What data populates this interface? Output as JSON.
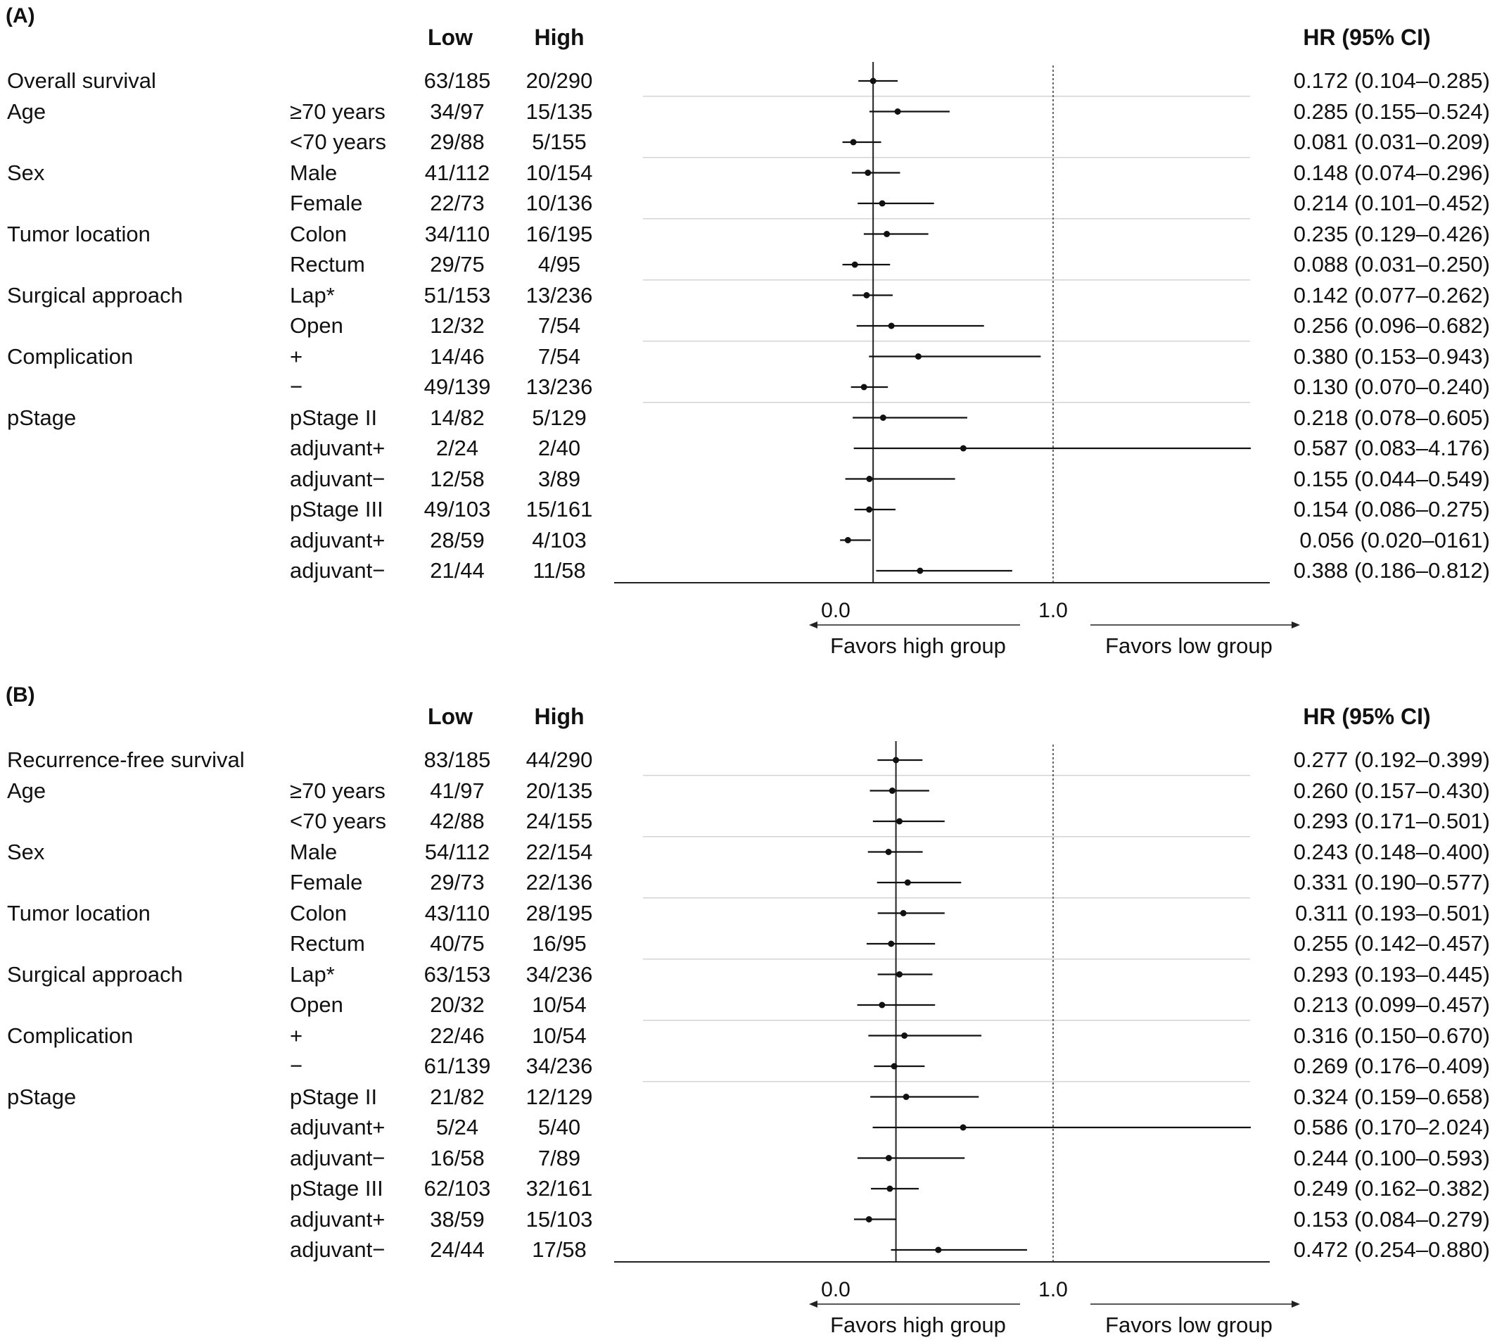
{
  "panels": [
    {
      "label": "(A)",
      "col_low": "Low",
      "col_high": "High",
      "col_hr": "HR (95% CI)",
      "axis_tick_labels": [
        "0.0",
        "1.0"
      ],
      "favors_left": "Favors high group",
      "favors_right": "Favors low group",
      "rows": [
        {
          "group": "Overall survival",
          "sub": "",
          "low": "63/185",
          "high": "20/290",
          "hr_text": "0.172 (0.104–0.285)"
        },
        {
          "group": "Age",
          "sub": "≥70 years",
          "low": "34/97",
          "high": "15/135",
          "hr_text": "0.285 (0.155–0.524)"
        },
        {
          "group": "",
          "sub": "<70 years",
          "low": "29/88",
          "high": "5/155",
          "hr_text": "0.081 (0.031–0.209)"
        },
        {
          "group": "Sex",
          "sub": "Male",
          "low": "41/112",
          "high": "10/154",
          "hr_text": "0.148 (0.074–0.296)"
        },
        {
          "group": "",
          "sub": "Female",
          "low": "22/73",
          "high": "10/136",
          "hr_text": "0.214 (0.101–0.452)"
        },
        {
          "group": "Tumor location",
          "sub": "Colon",
          "low": "34/110",
          "high": "16/195",
          "hr_text": "0.235 (0.129–0.426)"
        },
        {
          "group": "",
          "sub": "Rectum",
          "low": "29/75",
          "high": "4/95",
          "hr_text": "0.088 (0.031–0.250)"
        },
        {
          "group": "Surgical approach",
          "sub": "Lap*",
          "low": "51/153",
          "high": "13/236",
          "hr_text": "0.142 (0.077–0.262)"
        },
        {
          "group": "",
          "sub": "Open",
          "low": "12/32",
          "high": "7/54",
          "hr_text": "0.256 (0.096–0.682)"
        },
        {
          "group": "Complication",
          "sub": "+",
          "low": "14/46",
          "high": "7/54",
          "hr_text": "0.380 (0.153–0.943)"
        },
        {
          "group": "",
          "sub": "−",
          "low": "49/139",
          "high": "13/236",
          "hr_text": "0.130 (0.070–0.240)"
        },
        {
          "group": "pStage",
          "sub": "pStage II",
          "low": "14/82",
          "high": "5/129",
          "hr_text": "0.218 (0.078–0.605)"
        },
        {
          "group": "",
          "sub": "adjuvant+",
          "low": "2/24",
          "high": "2/40",
          "hr_text": "0.587 (0.083–4.176)"
        },
        {
          "group": "",
          "sub": "adjuvant−",
          "low": "12/58",
          "high": "3/89",
          "hr_text": "0.155 (0.044–0.549)"
        },
        {
          "group": "",
          "sub": "pStage III",
          "low": "49/103",
          "high": "15/161",
          "hr_text": "0.154 (0.086–0.275)"
        },
        {
          "group": "",
          "sub": "adjuvant+",
          "low": "28/59",
          "high": "4/103",
          "hr_text": "0.056 (0.020–0161)"
        },
        {
          "group": "",
          "sub": "adjuvant−",
          "low": "21/44",
          "high": "11/58",
          "hr_text": "0.388 (0.186–0.812)"
        }
      ]
    },
    {
      "label": "(B)",
      "col_low": "Low",
      "col_high": "High",
      "col_hr": "HR (95% CI)",
      "axis_tick_labels": [
        "0.0",
        "1.0"
      ],
      "favors_left": "Favors high group",
      "favors_right": "Favors low group",
      "rows": [
        {
          "group": "Recurrence-free survival",
          "sub": "",
          "low": "83/185",
          "high": "44/290",
          "hr_text": "0.277 (0.192–0.399)"
        },
        {
          "group": "Age",
          "sub": "≥70 years",
          "low": "41/97",
          "high": "20/135",
          "hr_text": "0.260 (0.157–0.430)"
        },
        {
          "group": "",
          "sub": "<70 years",
          "low": "42/88",
          "high": "24/155",
          "hr_text": "0.293 (0.171–0.501)"
        },
        {
          "group": "Sex",
          "sub": "Male",
          "low": "54/112",
          "high": "22/154",
          "hr_text": "0.243 (0.148–0.400)"
        },
        {
          "group": "",
          "sub": "Female",
          "low": "29/73",
          "high": "22/136",
          "hr_text": "0.331 (0.190–0.577)"
        },
        {
          "group": "Tumor location",
          "sub": "Colon",
          "low": "43/110",
          "high": "28/195",
          "hr_text": "0.311 (0.193–0.501)"
        },
        {
          "group": "",
          "sub": "Rectum",
          "low": "40/75",
          "high": "16/95",
          "hr_text": "0.255 (0.142–0.457)"
        },
        {
          "group": "Surgical approach",
          "sub": "Lap*",
          "low": "63/153",
          "high": "34/236",
          "hr_text": "0.293 (0.193–0.445)"
        },
        {
          "group": "",
          "sub": "Open",
          "low": "20/32",
          "high": "10/54",
          "hr_text": "0.213 (0.099–0.457)"
        },
        {
          "group": "Complication",
          "sub": "+",
          "low": "22/46",
          "high": "10/54",
          "hr_text": "0.316 (0.150–0.670)"
        },
        {
          "group": "",
          "sub": "−",
          "low": "61/139",
          "high": "34/236",
          "hr_text": "0.269 (0.176–0.409)"
        },
        {
          "group": "pStage",
          "sub": "pStage II",
          "low": "21/82",
          "high": "12/129",
          "hr_text": "0.324 (0.159–0.658)"
        },
        {
          "group": "",
          "sub": "adjuvant+",
          "low": "5/24",
          "high": "5/40",
          "hr_text": "0.586 (0.170–2.024)"
        },
        {
          "group": "",
          "sub": "adjuvant−",
          "low": "16/58",
          "high": "7/89",
          "hr_text": "0.244 (0.100–0.593)"
        },
        {
          "group": "",
          "sub": "pStage III",
          "low": "62/103",
          "high": "32/161",
          "hr_text": "0.249 (0.162–0.382)"
        },
        {
          "group": "",
          "sub": "adjuvant+",
          "low": "38/59",
          "high": "15/103",
          "hr_text": "0.153 (0.084–0.279)"
        },
        {
          "group": "",
          "sub": "adjuvant−",
          "low": "24/44",
          "high": "17/58",
          "hr_text": "0.472 (0.254–0.880)"
        }
      ]
    }
  ],
  "chart_data": [
    {
      "type": "scatter",
      "title": "(A)",
      "reference_line": 1.0,
      "overall_line": 0.172,
      "x_ticks": [
        0.0,
        1.0
      ],
      "series": [
        {
          "name": "HR (95% CI)",
          "categories": [
            "Overall survival",
            "Age ≥70 years",
            "Age <70 years",
            "Sex Male",
            "Sex Female",
            "Tumor location Colon",
            "Tumor location Rectum",
            "Surgical approach Lap*",
            "Surgical approach Open",
            "Complication +",
            "Complication −",
            "pStage II",
            "pStage II adjuvant+",
            "pStage II adjuvant−",
            "pStage III",
            "pStage III adjuvant+",
            "pStage III adjuvant−"
          ],
          "hr": [
            0.172,
            0.285,
            0.081,
            0.148,
            0.214,
            0.235,
            0.088,
            0.142,
            0.256,
            0.38,
            0.13,
            0.218,
            0.587,
            0.155,
            0.154,
            0.056,
            0.388
          ],
          "ci_low": [
            0.104,
            0.155,
            0.031,
            0.074,
            0.101,
            0.129,
            0.031,
            0.077,
            0.096,
            0.153,
            0.07,
            0.078,
            0.083,
            0.044,
            0.086,
            0.02,
            0.186
          ],
          "ci_high": [
            0.285,
            0.524,
            0.209,
            0.296,
            0.452,
            0.426,
            0.25,
            0.262,
            0.682,
            0.943,
            0.24,
            0.605,
            4.176,
            0.549,
            0.275,
            0.161,
            0.812
          ]
        }
      ]
    },
    {
      "type": "scatter",
      "title": "(B)",
      "reference_line": 1.0,
      "overall_line": 0.277,
      "x_ticks": [
        0.0,
        1.0
      ],
      "series": [
        {
          "name": "HR (95% CI)",
          "categories": [
            "Recurrence-free survival",
            "Age ≥70 years",
            "Age <70 years",
            "Sex Male",
            "Sex Female",
            "Tumor location Colon",
            "Tumor location Rectum",
            "Surgical approach Lap*",
            "Surgical approach Open",
            "Complication +",
            "Complication −",
            "pStage II",
            "pStage II adjuvant+",
            "pStage II adjuvant−",
            "pStage III",
            "pStage III adjuvant+",
            "pStage III adjuvant−"
          ],
          "hr": [
            0.277,
            0.26,
            0.293,
            0.243,
            0.331,
            0.311,
            0.255,
            0.293,
            0.213,
            0.316,
            0.269,
            0.324,
            0.586,
            0.244,
            0.249,
            0.153,
            0.472
          ],
          "ci_low": [
            0.192,
            0.157,
            0.171,
            0.148,
            0.19,
            0.193,
            0.142,
            0.193,
            0.099,
            0.15,
            0.176,
            0.159,
            0.17,
            0.1,
            0.162,
            0.084,
            0.254
          ],
          "ci_high": [
            0.399,
            0.43,
            0.501,
            0.4,
            0.577,
            0.501,
            0.457,
            0.445,
            0.457,
            0.67,
            0.409,
            0.658,
            2.024,
            0.593,
            0.382,
            0.279,
            0.88
          ]
        }
      ]
    }
  ]
}
